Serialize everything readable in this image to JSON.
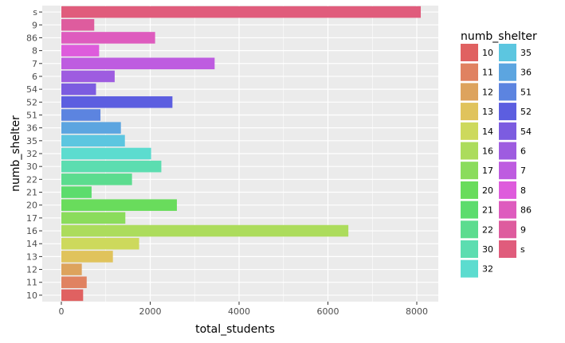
{
  "chart_data": {
    "type": "bar",
    "orientation": "horizontal",
    "xlabel": "total_students",
    "ylabel": "numb_shelter",
    "xlim": [
      0,
      8500
    ],
    "x_ticks": [
      0,
      2000,
      4000,
      6000,
      8000
    ],
    "grid": true,
    "legend_placement": "right",
    "legend": {
      "title": "numb_shelter",
      "columns": [
        [
          "10",
          "11",
          "12",
          "13",
          "14",
          "16",
          "17",
          "20",
          "21",
          "22",
          "30",
          "32"
        ],
        [
          "35",
          "36",
          "51",
          "52",
          "54",
          "6",
          "7",
          "8",
          "86",
          "9",
          "s"
        ]
      ]
    },
    "categories": [
      "10",
      "11",
      "12",
      "13",
      "14",
      "16",
      "17",
      "20",
      "21",
      "22",
      "30",
      "32",
      "35",
      "36",
      "51",
      "52",
      "54",
      "6",
      "7",
      "8",
      "86",
      "9",
      "s"
    ],
    "values": [
      490,
      570,
      460,
      1160,
      1750,
      6460,
      1440,
      2600,
      680,
      1590,
      2250,
      2020,
      1430,
      1340,
      880,
      2500,
      780,
      1200,
      3450,
      850,
      2110,
      740,
      8090
    ],
    "colors": {
      "10": "#e06161",
      "11": "#e08261",
      "12": "#dda35d",
      "13": "#e0c35c",
      "14": "#cdd95c",
      "16": "#acdc5c",
      "17": "#8bdc5c",
      "20": "#69dc5c",
      "21": "#5cdc6d",
      "22": "#5cdc8f",
      "30": "#5cddb0",
      "32": "#5cdccf",
      "35": "#5cc6e0",
      "36": "#5ca5e0",
      "51": "#5c84e0",
      "52": "#5c5ee0",
      "54": "#7c5ce0",
      "6": "#9e5ce0",
      "7": "#be5ce0",
      "8": "#de5cdc",
      "86": "#de5cbe",
      "9": "#de5c9e",
      "s": "#e05c7c"
    },
    "panel_background": "#ebebeb",
    "grid_color": "#ffffff"
  }
}
